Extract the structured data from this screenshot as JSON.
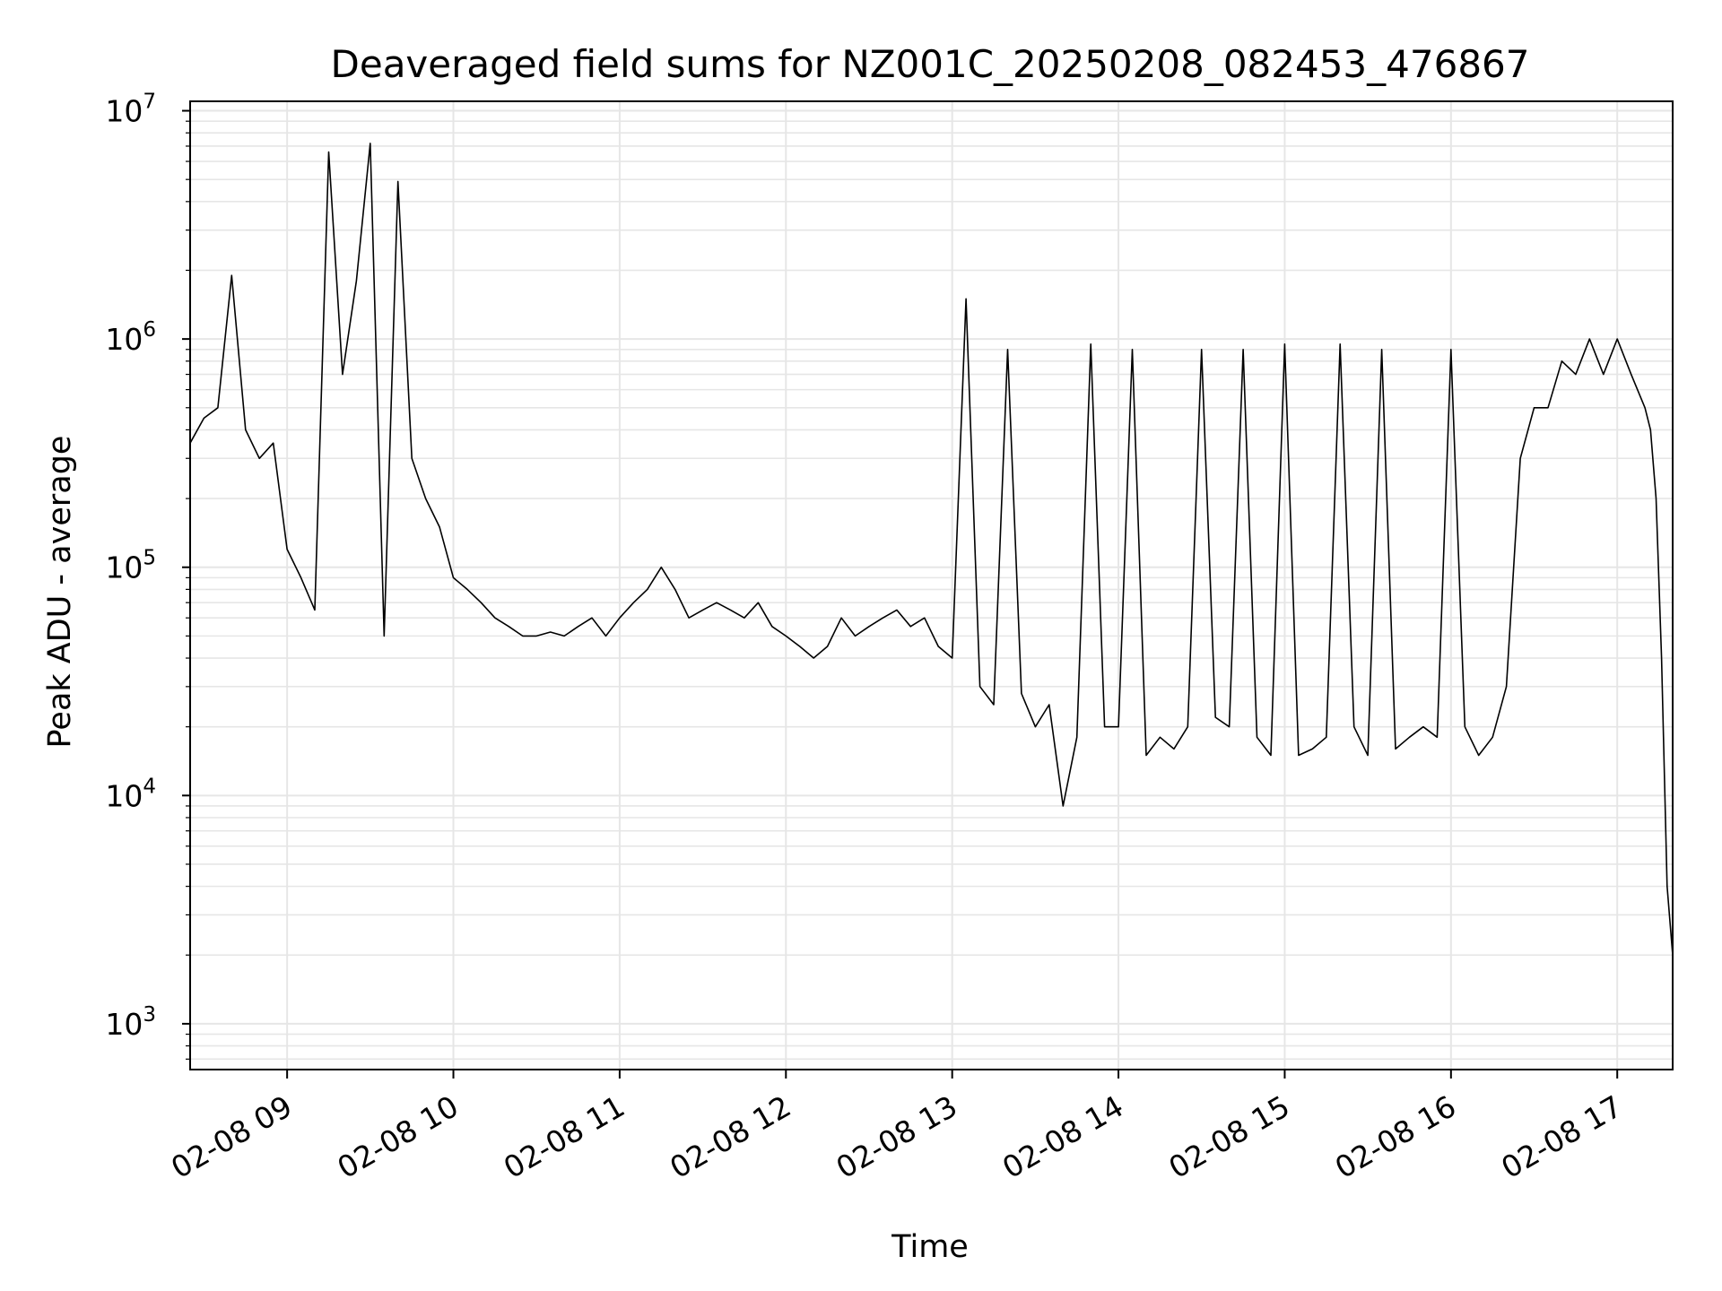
{
  "chart_data": {
    "type": "line",
    "title": "Deaveraged field sums for NZ001C_20250208_082453_476867",
    "xlabel": "Time",
    "ylabel": "Peak ADU - average",
    "yscale": "log",
    "grid": true,
    "xlim": [
      "02-08 08:25",
      "02-08 17:20"
    ],
    "ylim": [
      630,
      11000000
    ],
    "xticks": [
      {
        "t": "02-08 09:00",
        "label": "02-08 09"
      },
      {
        "t": "02-08 10:00",
        "label": "02-08 10"
      },
      {
        "t": "02-08 11:00",
        "label": "02-08 11"
      },
      {
        "t": "02-08 12:00",
        "label": "02-08 12"
      },
      {
        "t": "02-08 13:00",
        "label": "02-08 13"
      },
      {
        "t": "02-08 14:00",
        "label": "02-08 14"
      },
      {
        "t": "02-08 15:00",
        "label": "02-08 15"
      },
      {
        "t": "02-08 16:00",
        "label": "02-08 16"
      },
      {
        "t": "02-08 17:00",
        "label": "02-08 17"
      }
    ],
    "yticks": [
      {
        "value": 1000,
        "base": "10",
        "exp": "3"
      },
      {
        "value": 10000,
        "base": "10",
        "exp": "4"
      },
      {
        "value": 100000,
        "base": "10",
        "exp": "5"
      },
      {
        "value": 1000000,
        "base": "10",
        "exp": "6"
      },
      {
        "value": 10000000,
        "base": "10",
        "exp": "7"
      }
    ],
    "line_color": "#000000",
    "series": [
      {
        "x": [
          "02-08 08:25",
          "02-08 08:30",
          "02-08 08:35",
          "02-08 08:40",
          "02-08 08:45",
          "02-08 08:50",
          "02-08 08:55",
          "02-08 09:00",
          "02-08 09:05",
          "02-08 09:10",
          "02-08 09:15",
          "02-08 09:20",
          "02-08 09:25",
          "02-08 09:30",
          "02-08 09:35",
          "02-08 09:40",
          "02-08 09:45",
          "02-08 09:50",
          "02-08 09:55",
          "02-08 10:00",
          "02-08 10:05",
          "02-08 10:10",
          "02-08 10:15",
          "02-08 10:20",
          "02-08 10:25",
          "02-08 10:30",
          "02-08 10:35",
          "02-08 10:40",
          "02-08 10:45",
          "02-08 10:50",
          "02-08 10:55",
          "02-08 11:00",
          "02-08 11:05",
          "02-08 11:10",
          "02-08 11:15",
          "02-08 11:20",
          "02-08 11:25",
          "02-08 11:30",
          "02-08 11:35",
          "02-08 11:40",
          "02-08 11:45",
          "02-08 11:50",
          "02-08 11:55",
          "02-08 12:00",
          "02-08 12:05",
          "02-08 12:10",
          "02-08 12:15",
          "02-08 12:20",
          "02-08 12:25",
          "02-08 12:30",
          "02-08 12:35",
          "02-08 12:40",
          "02-08 12:45",
          "02-08 12:50",
          "02-08 12:55",
          "02-08 13:00",
          "02-08 13:05",
          "02-08 13:10",
          "02-08 13:15",
          "02-08 13:20",
          "02-08 13:25",
          "02-08 13:30",
          "02-08 13:35",
          "02-08 13:40",
          "02-08 13:45",
          "02-08 13:50",
          "02-08 13:55",
          "02-08 14:00",
          "02-08 14:05",
          "02-08 14:10",
          "02-08 14:15",
          "02-08 14:20",
          "02-08 14:25",
          "02-08 14:30",
          "02-08 14:35",
          "02-08 14:40",
          "02-08 14:45",
          "02-08 14:50",
          "02-08 14:55",
          "02-08 15:00",
          "02-08 15:05",
          "02-08 15:10",
          "02-08 15:15",
          "02-08 15:20",
          "02-08 15:25",
          "02-08 15:30",
          "02-08 15:35",
          "02-08 15:40",
          "02-08 15:45",
          "02-08 15:50",
          "02-08 15:55",
          "02-08 16:00",
          "02-08 16:05",
          "02-08 16:10",
          "02-08 16:15",
          "02-08 16:20",
          "02-08 16:25",
          "02-08 16:30",
          "02-08 16:35",
          "02-08 16:40",
          "02-08 16:45",
          "02-08 16:50",
          "02-08 16:55",
          "02-08 17:00",
          "02-08 17:05",
          "02-08 17:10",
          "02-08 17:12",
          "02-08 17:14",
          "02-08 17:16",
          "02-08 17:18",
          "02-08 17:20"
        ],
        "y": [
          350000,
          450000,
          500000,
          1900000,
          400000,
          300000,
          350000,
          120000,
          90000,
          65000,
          6600000,
          700000,
          1800000,
          7200000,
          50000,
          4900000,
          300000,
          200000,
          150000,
          90000,
          80000,
          70000,
          60000,
          55000,
          50000,
          50000,
          52000,
          50000,
          55000,
          60000,
          50000,
          60000,
          70000,
          80000,
          100000,
          80000,
          60000,
          65000,
          70000,
          65000,
          60000,
          70000,
          55000,
          50000,
          45000,
          40000,
          45000,
          60000,
          50000,
          55000,
          60000,
          65000,
          55000,
          60000,
          45000,
          40000,
          1500000,
          30000,
          25000,
          900000,
          28000,
          20000,
          25000,
          9000,
          18000,
          950000,
          20000,
          20000,
          900000,
          15000,
          18000,
          16000,
          20000,
          900000,
          22000,
          20000,
          900000,
          18000,
          15000,
          950000,
          15000,
          16000,
          18000,
          950000,
          20000,
          15000,
          900000,
          16000,
          18000,
          20000,
          18000,
          900000,
          20000,
          15000,
          18000,
          30000,
          300000,
          500000,
          500000,
          800000,
          700000,
          1000000,
          700000,
          1000000,
          700000,
          500000,
          400000,
          200000,
          40000,
          4000,
          2000
        ]
      }
    ]
  }
}
